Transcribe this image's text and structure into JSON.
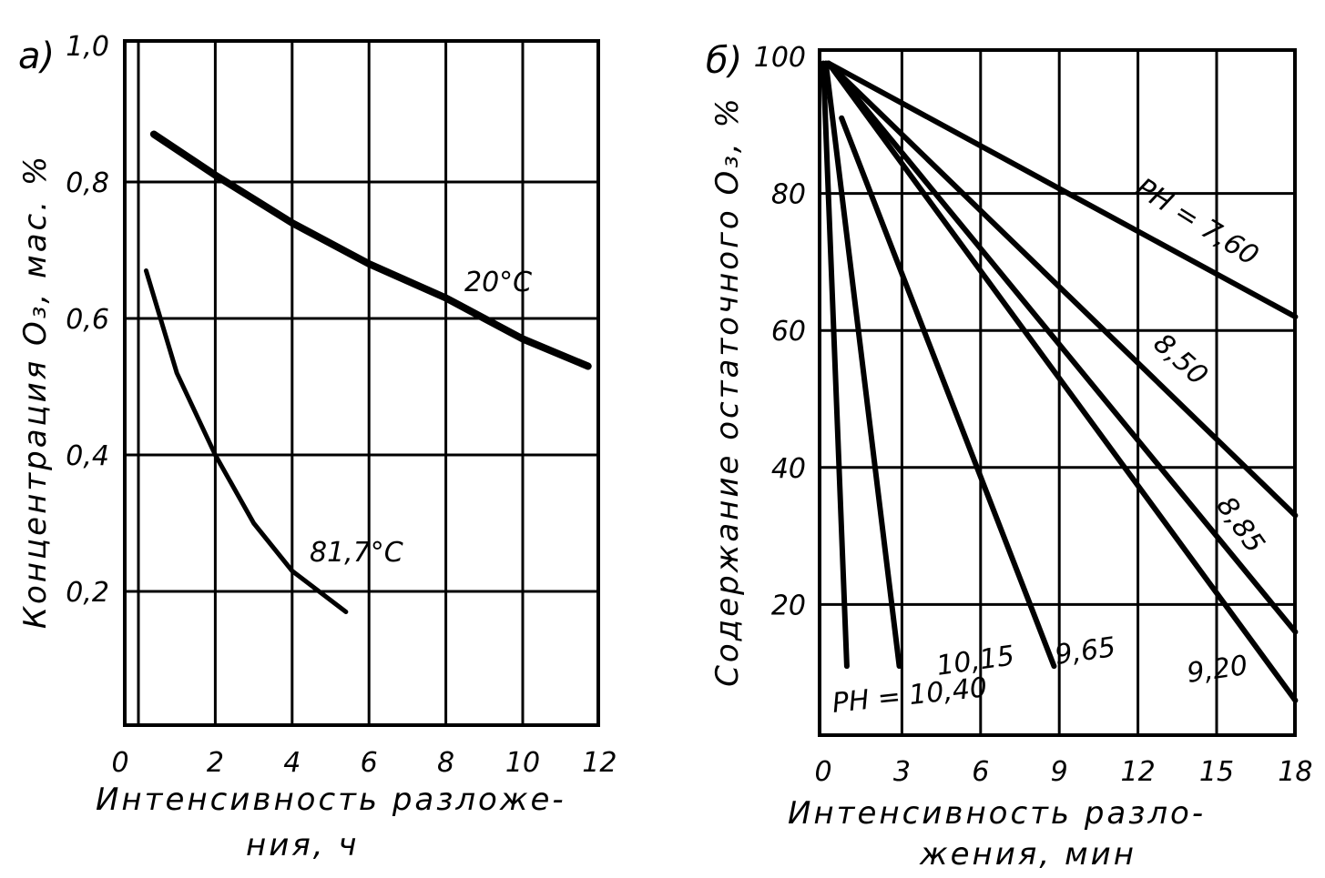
{
  "chart_data": [
    {
      "type": "line",
      "panel_label": "а)",
      "xlabel": [
        "Интенсивность разложе-",
        "ния, ч"
      ],
      "ylabel": "Концентрация O₃, мас. %",
      "xlim": [
        0,
        12
      ],
      "ylim": [
        0,
        1.0
      ],
      "xticks": [
        "0",
        "2",
        "4",
        "6",
        "8",
        "10",
        "12"
      ],
      "yticks": [
        "0,2",
        "0,4",
        "0,6",
        "0,8",
        "1,0"
      ],
      "grid": true,
      "series": [
        {
          "name": "20°C",
          "x": [
            0.4,
            2,
            4,
            6,
            8,
            10,
            11.7
          ],
          "y": [
            0.87,
            0.81,
            0.74,
            0.68,
            0.63,
            0.57,
            0.53
          ]
        },
        {
          "name": "81,7°C",
          "x": [
            0.2,
            1,
            2,
            3,
            4,
            5.4
          ],
          "y": [
            0.67,
            0.52,
            0.4,
            0.3,
            0.23,
            0.17
          ]
        }
      ]
    },
    {
      "type": "line",
      "panel_label": "б)",
      "xlabel": [
        "Интенсивность разло-",
        "жения, мин"
      ],
      "ylabel": "Содержание остаточного O₃, %",
      "xlim": [
        0,
        18
      ],
      "ylim": [
        0,
        100
      ],
      "xticks": [
        "0",
        "3",
        "6",
        "9",
        "12",
        "15",
        "18"
      ],
      "yticks": [
        "20",
        "40",
        "60",
        "80",
        "100"
      ],
      "grid": true,
      "series": [
        {
          "name": "PH = 7,60",
          "x": [
            0.2,
            18
          ],
          "y": [
            99,
            62
          ]
        },
        {
          "name": "8,50",
          "x": [
            0.2,
            18
          ],
          "y": [
            99,
            33
          ]
        },
        {
          "name": "8,85",
          "x": [
            0.2,
            18
          ],
          "y": [
            99,
            16
          ]
        },
        {
          "name": "9,20",
          "x": [
            0.2,
            18
          ],
          "y": [
            99,
            6
          ]
        },
        {
          "name": "9,65",
          "x": [
            0.7,
            8.8
          ],
          "y": [
            91,
            11
          ]
        },
        {
          "name": "10,15",
          "x": [
            0.1,
            2.9
          ],
          "y": [
            99,
            11
          ]
        },
        {
          "name": "PH = 10,40",
          "x": [
            0.0,
            0.9
          ],
          "y": [
            99,
            11
          ]
        }
      ]
    }
  ]
}
